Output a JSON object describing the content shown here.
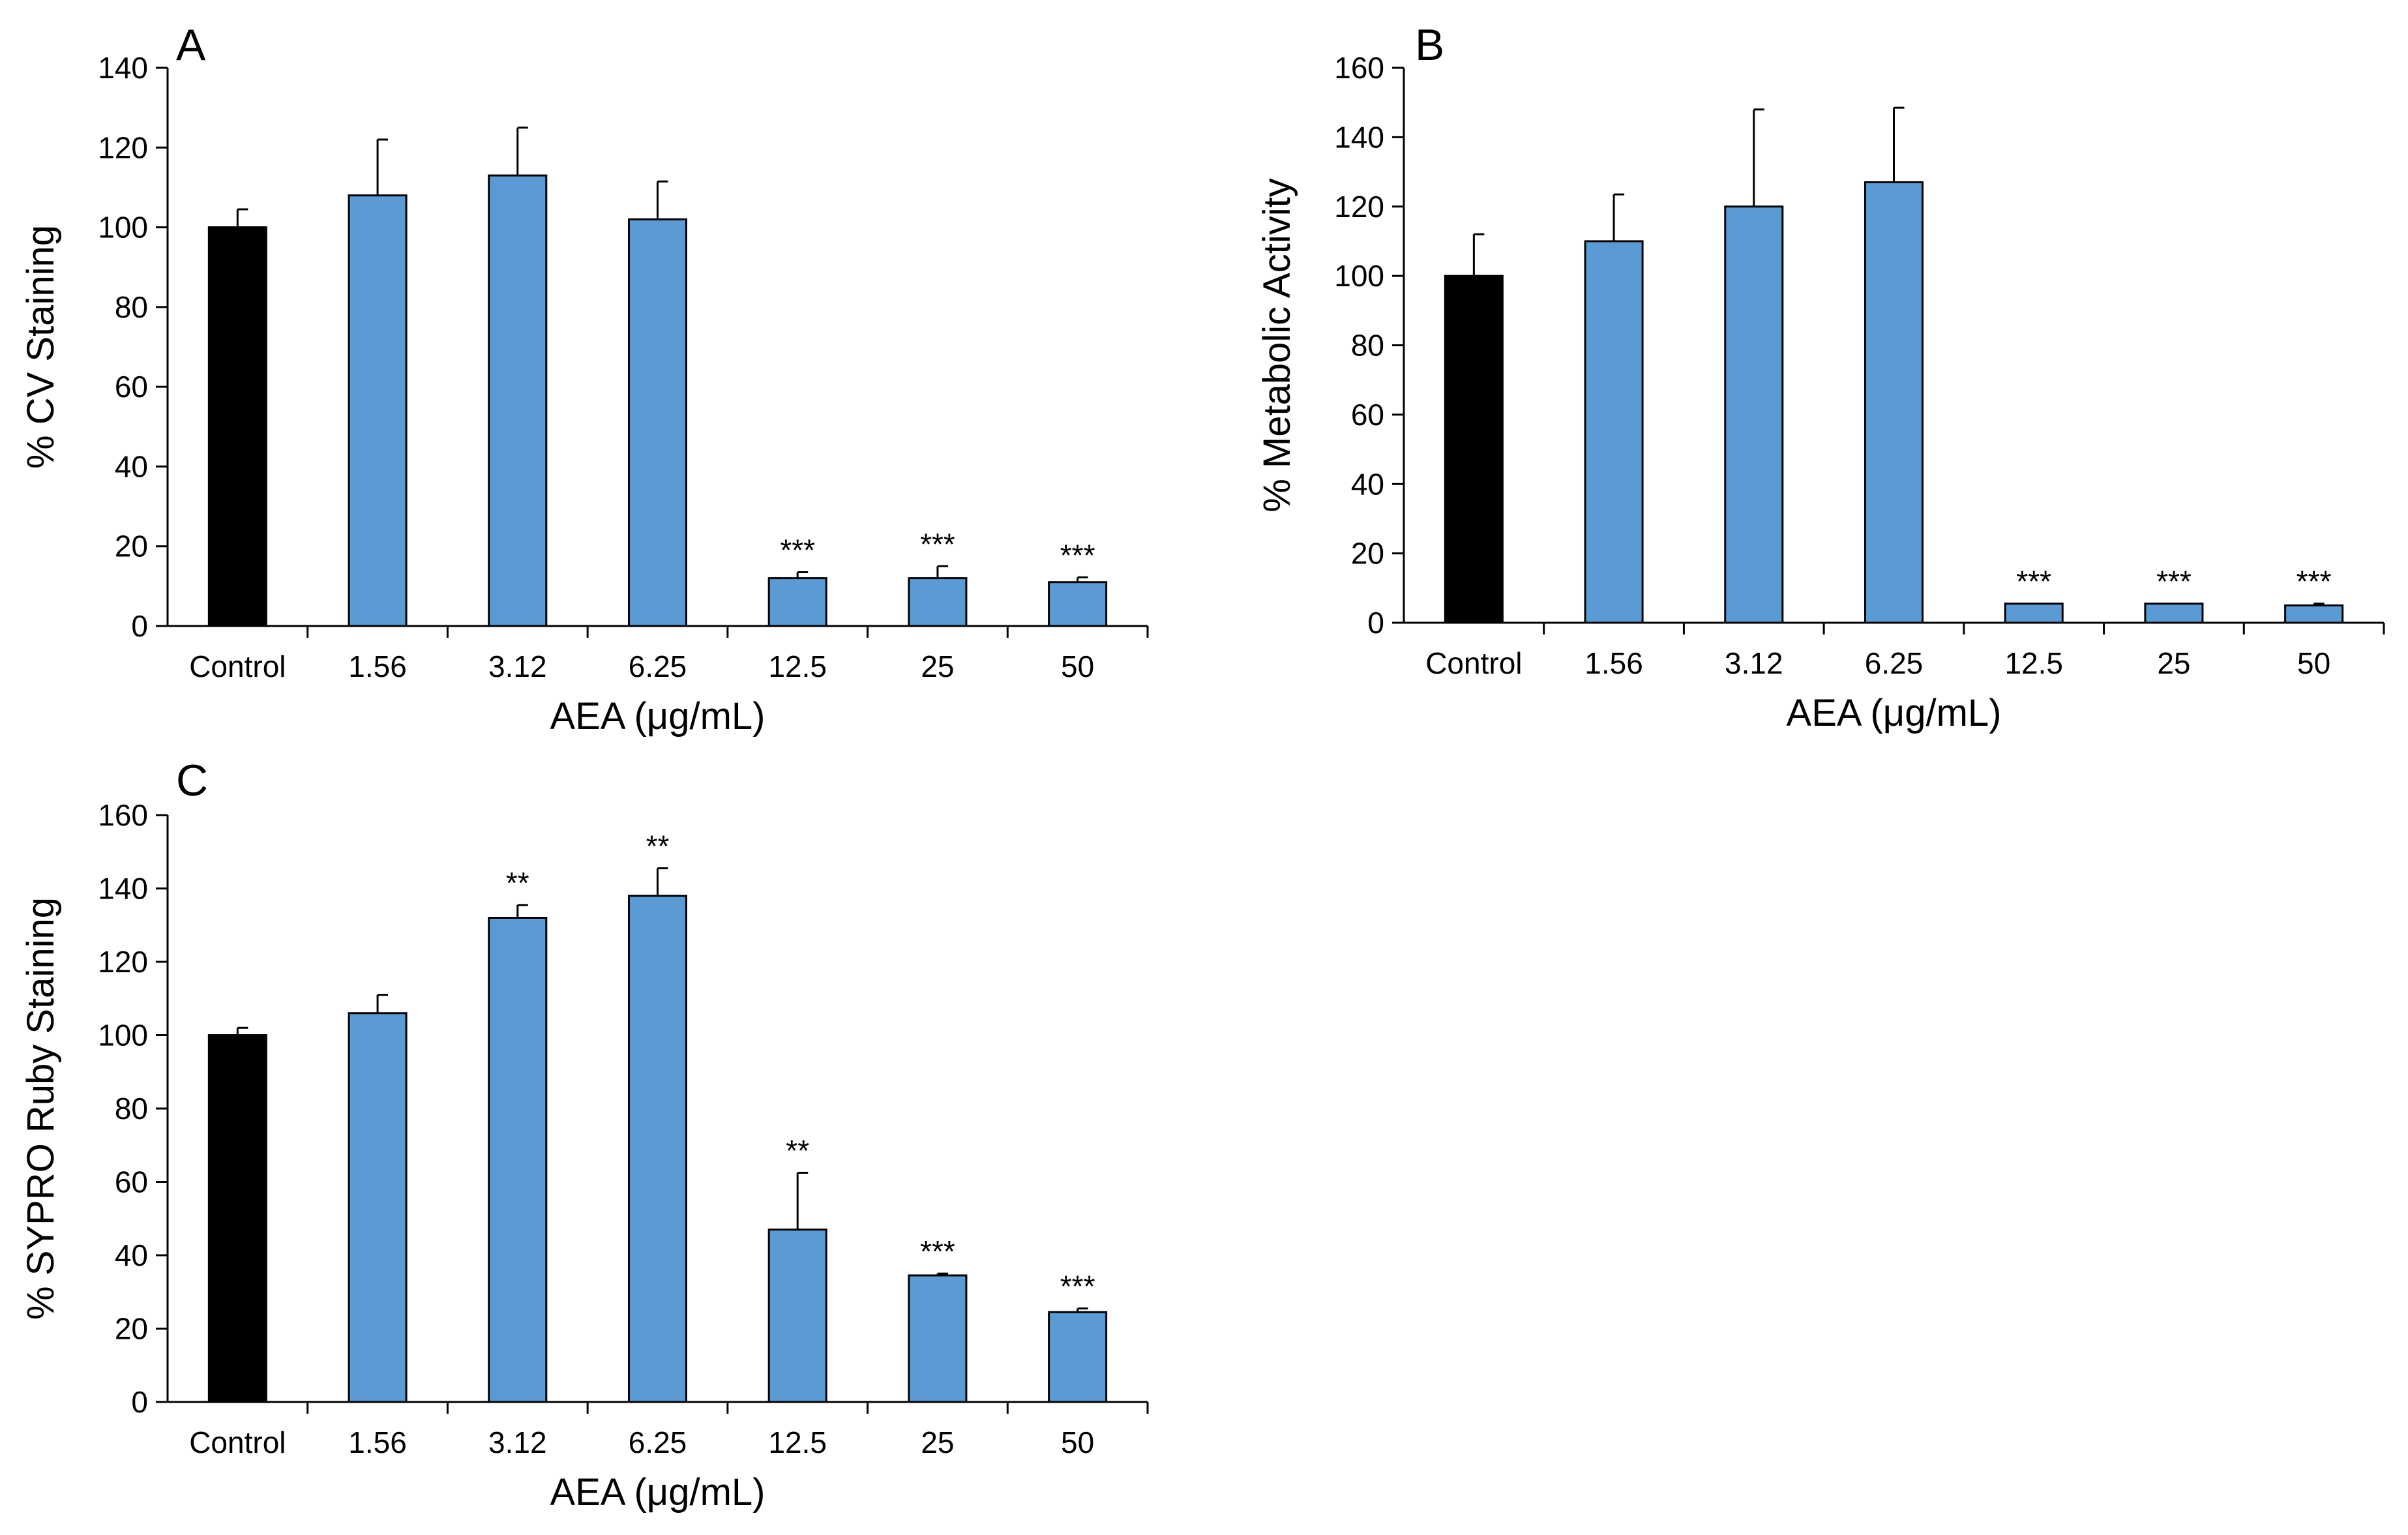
{
  "chart_data": [
    {
      "type": "bar",
      "panel_label": "A",
      "categories": [
        "Control",
        "1.56",
        "3.12",
        "6.25",
        "12.5",
        "25",
        "50"
      ],
      "values": [
        100,
        108,
        113,
        102,
        12,
        12,
        11
      ],
      "errors": [
        4.5,
        14,
        12,
        9.5,
        1.5,
        3,
        1.2
      ],
      "significance": [
        "",
        "",
        "",
        "",
        "***",
        "***",
        "***"
      ],
      "bar_colors": [
        "#000000",
        "#5b9bd5",
        "#5b9bd5",
        "#5b9bd5",
        "#5b9bd5",
        "#5b9bd5",
        "#5b9bd5"
      ],
      "xlabel": "AEA (μg/mL)",
      "ylabel": "% CV Staining",
      "ylim": [
        0,
        140
      ],
      "yticks": [
        0,
        20,
        40,
        60,
        80,
        100,
        120,
        140
      ],
      "grid": false
    },
    {
      "type": "bar",
      "panel_label": "B",
      "categories": [
        "Control",
        "1.56",
        "3.12",
        "6.25",
        "12.5",
        "25",
        "50"
      ],
      "values": [
        100,
        110,
        120,
        127,
        5.5,
        5.5,
        5
      ],
      "errors": [
        12,
        13.5,
        28,
        21.5,
        0,
        0,
        0.5
      ],
      "significance": [
        "",
        "",
        "",
        "",
        "***",
        "***",
        "***"
      ],
      "bar_colors": [
        "#000000",
        "#5b9bd5",
        "#5b9bd5",
        "#5b9bd5",
        "#5b9bd5",
        "#5b9bd5",
        "#5b9bd5"
      ],
      "xlabel": "AEA (μg/mL)",
      "ylabel": "% Metabolic Activity",
      "ylim": [
        0,
        160
      ],
      "yticks": [
        0,
        20,
        40,
        60,
        80,
        100,
        120,
        140,
        160
      ],
      "grid": false
    },
    {
      "type": "bar",
      "panel_label": "C",
      "categories": [
        "Control",
        "1.56",
        "3.12",
        "6.25",
        "12.5",
        "25",
        "50"
      ],
      "values": [
        100,
        106,
        132,
        138,
        47,
        34.5,
        24.5
      ],
      "errors": [
        2,
        5,
        3.5,
        7.5,
        15.5,
        0.5,
        1
      ],
      "significance": [
        "",
        "",
        "**",
        "**",
        "**",
        "***",
        "***"
      ],
      "bar_colors": [
        "#000000",
        "#5b9bd5",
        "#5b9bd5",
        "#5b9bd5",
        "#5b9bd5",
        "#5b9bd5",
        "#5b9bd5"
      ],
      "xlabel": "AEA (μg/mL)",
      "ylabel": "% SYPRO Ruby Staining",
      "ylim": [
        0,
        160
      ],
      "yticks": [
        0,
        20,
        40,
        60,
        80,
        100,
        120,
        140,
        160
      ],
      "grid": false
    }
  ]
}
